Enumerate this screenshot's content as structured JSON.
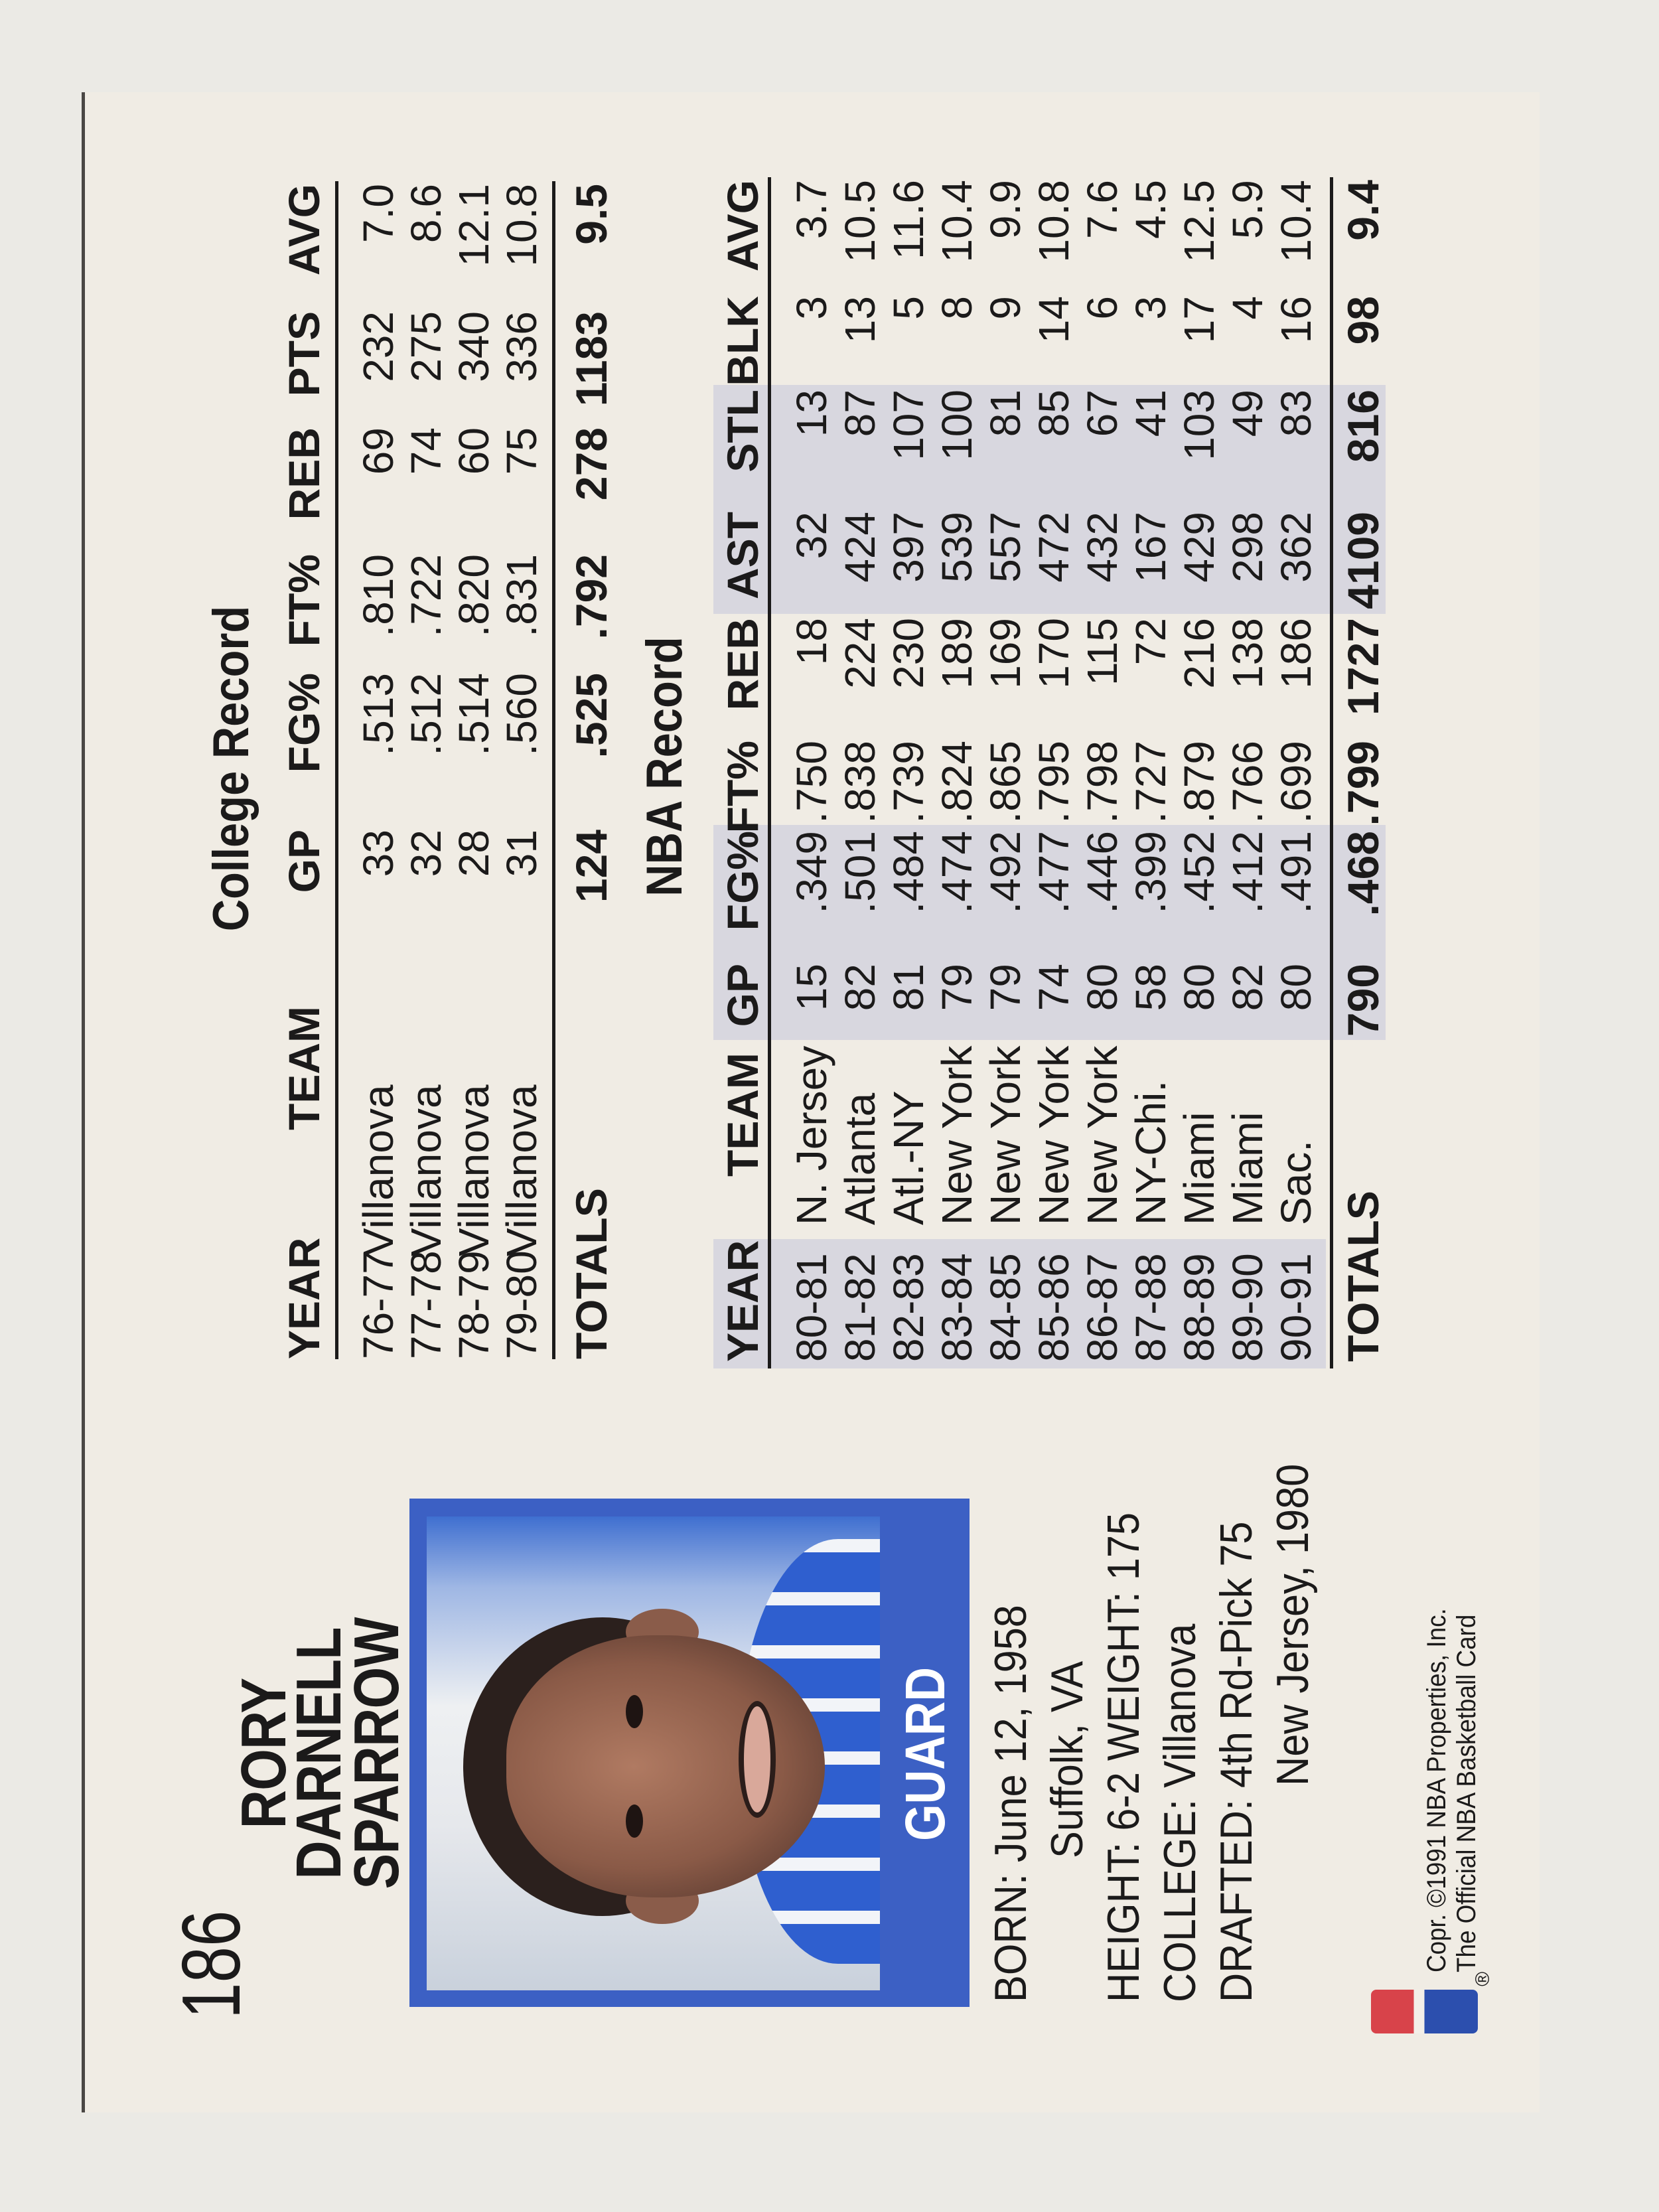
{
  "card": {
    "number": "186",
    "name_lines": [
      "RORY",
      "DARNELL",
      "SPARROW"
    ],
    "position": "GUARD",
    "bio": {
      "born": "BORN: June 12, 1958",
      "birthplace": "Suffolk, VA",
      "height_weight": "HEIGHT: 6-2  WEIGHT: 175",
      "college": "COLLEGE: Villanova",
      "drafted": "DRAFTED: 4th Rd-Pick 75",
      "drafted_team": "New Jersey, 1980"
    },
    "copyright": [
      "Copr. ©1991 NBA Properties, Inc.",
      "The Official NBA Basketball Card"
    ],
    "registered_mark": "®",
    "logo": "NBA"
  },
  "college_record": {
    "title": "College Record",
    "columns": [
      "YEAR",
      "TEAM",
      "GP",
      "FG%",
      "FT%",
      "REB",
      "PTS",
      "AVG"
    ],
    "rows": [
      [
        "76-77",
        "Villanova",
        "33",
        ".513",
        ".810",
        "69",
        "232",
        "7.0"
      ],
      [
        "77-78",
        "Villanova",
        "32",
        ".512",
        ".722",
        "74",
        "275",
        "8.6"
      ],
      [
        "78-79",
        "Villanova",
        "28",
        ".514",
        ".820",
        "60",
        "340",
        "12.1"
      ],
      [
        "79-80",
        "Villanova",
        "31",
        ".560",
        ".831",
        "75",
        "336",
        "10.8"
      ]
    ],
    "totals": [
      "TOTALS",
      "",
      "124",
      ".525",
      ".792",
      "278",
      "1183",
      "9.5"
    ]
  },
  "nba_record": {
    "title": "NBA Record",
    "columns": [
      "YEAR",
      "TEAM",
      "GP",
      "FG%",
      "FT%",
      "REB",
      "AST",
      "STL",
      "BLK",
      "AVG"
    ],
    "rows": [
      [
        "80-81",
        "N. Jersey",
        "15",
        ".349",
        ".750",
        "18",
        "32",
        "13",
        "3",
        "3.7"
      ],
      [
        "81-82",
        "Atlanta",
        "82",
        ".501",
        ".838",
        "224",
        "424",
        "87",
        "13",
        "10.5"
      ],
      [
        "82-83",
        "Atl.-NY",
        "81",
        ".484",
        ".739",
        "230",
        "397",
        "107",
        "5",
        "11.6"
      ],
      [
        "83-84",
        "New York",
        "79",
        ".474",
        ".824",
        "189",
        "539",
        "100",
        "8",
        "10.4"
      ],
      [
        "84-85",
        "New York",
        "79",
        ".492",
        ".865",
        "169",
        "557",
        "81",
        "9",
        "9.9"
      ],
      [
        "85-86",
        "New York",
        "74",
        ".477",
        ".795",
        "170",
        "472",
        "85",
        "14",
        "10.8"
      ],
      [
        "86-87",
        "New York",
        "80",
        ".446",
        ".798",
        "115",
        "432",
        "67",
        "6",
        "7.6"
      ],
      [
        "87-88",
        "NY-Chi.",
        "58",
        ".399",
        ".727",
        "72",
        "167",
        "41",
        "3",
        "4.5"
      ],
      [
        "88-89",
        "Miami",
        "80",
        ".452",
        ".879",
        "216",
        "429",
        "103",
        "17",
        "12.5"
      ],
      [
        "89-90",
        "Miami",
        "82",
        ".412",
        ".766",
        "138",
        "298",
        "49",
        "4",
        "5.9"
      ],
      [
        "90-91",
        "Sac.",
        "80",
        ".491",
        ".699",
        "186",
        "362",
        "83",
        "16",
        "10.4"
      ]
    ],
    "totals": [
      "TOTALS",
      "",
      "790",
      ".468",
      ".799",
      "1727",
      "4109",
      "816",
      "98",
      "9.4"
    ]
  },
  "colors": {
    "card": "#f0ece4",
    "frame_blue": "#3c60c4",
    "column_shade": "#d8d7df",
    "text": "#1b1a1a"
  }
}
